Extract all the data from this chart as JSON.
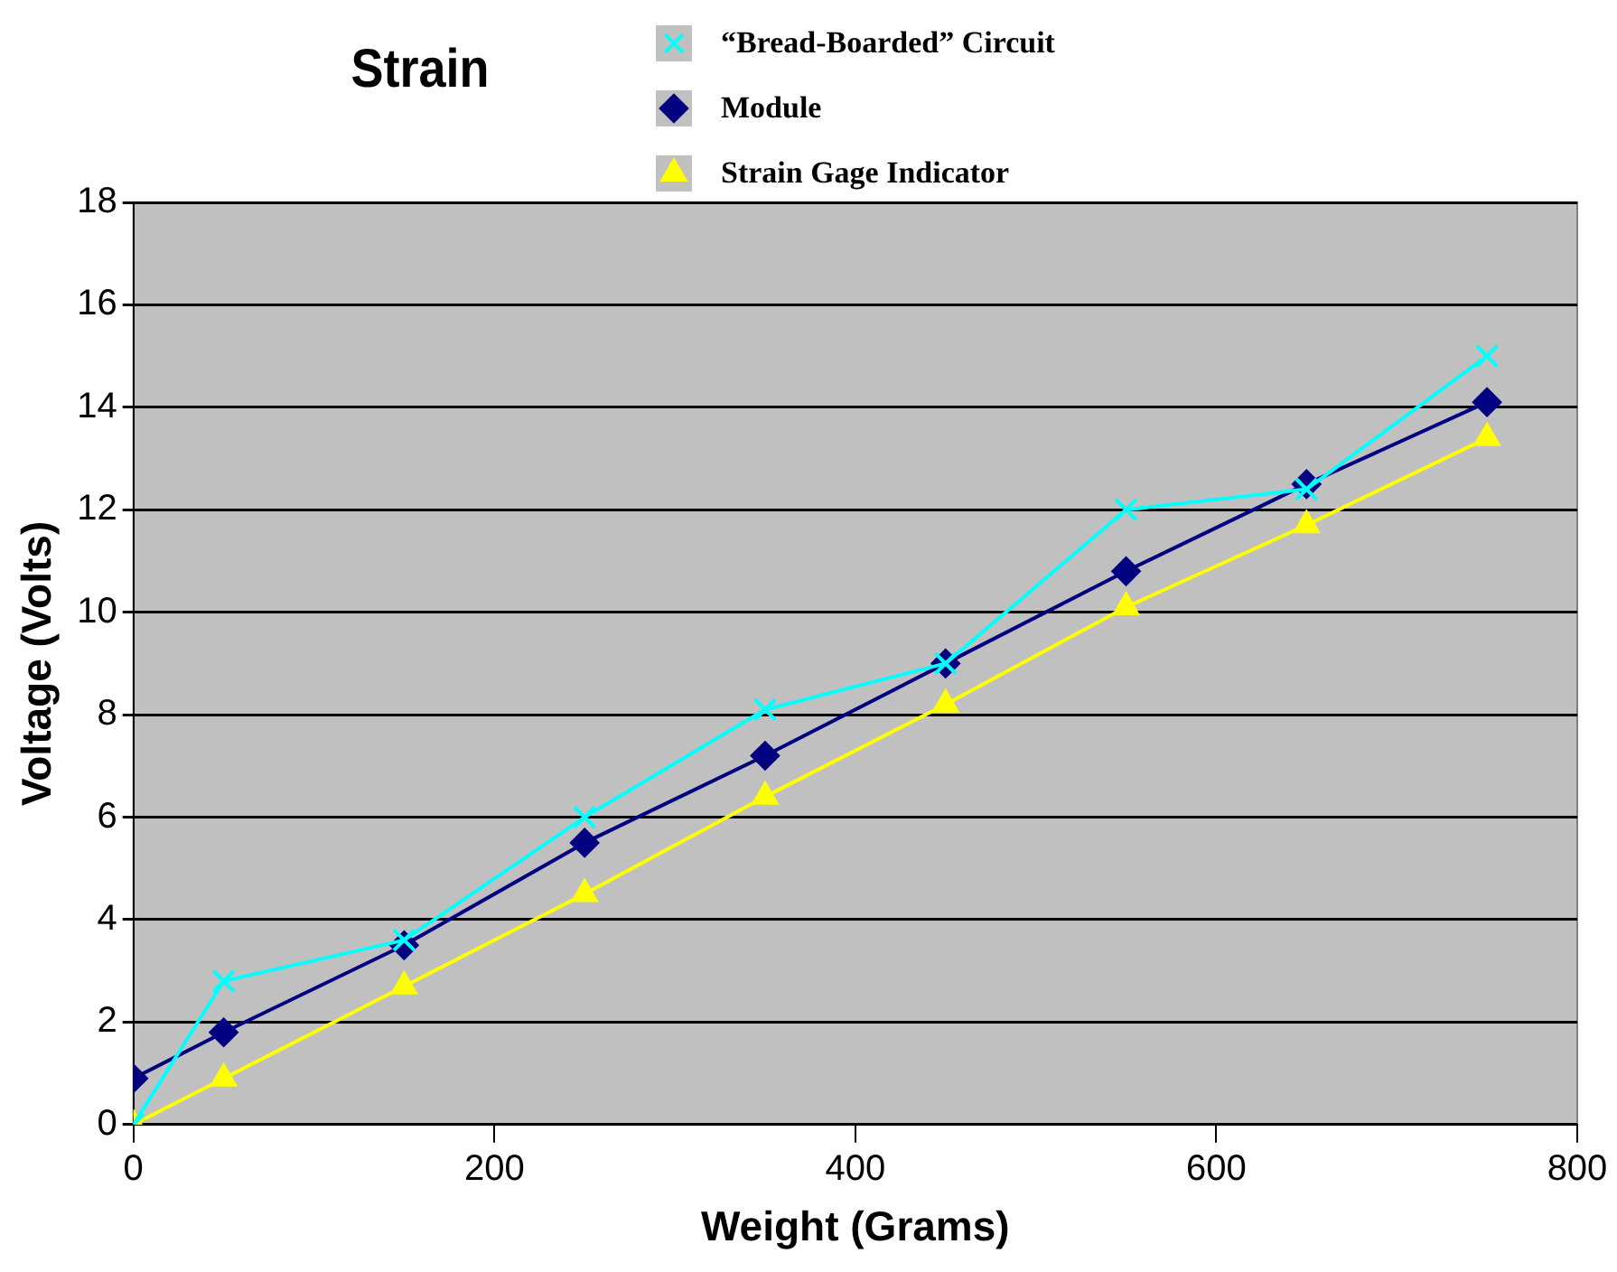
{
  "chart_data": {
    "type": "line",
    "title": "Strain",
    "xlabel": "Weight (Grams)",
    "ylabel": "Voltage (Volts)",
    "x": [
      0,
      50,
      150,
      250,
      350,
      450,
      550,
      650,
      750
    ],
    "series": [
      {
        "name": "“Bread-Boarded” Circuit",
        "color": "#00ffff",
        "marker": "cross",
        "values": [
          0,
          2.8,
          3.6,
          6.0,
          8.1,
          9.0,
          12.0,
          12.4,
          15.0
        ]
      },
      {
        "name": "Module",
        "color": "#000080",
        "marker": "diamond",
        "values": [
          0.9,
          1.8,
          3.5,
          5.5,
          7.2,
          9.0,
          10.8,
          12.5,
          14.1
        ]
      },
      {
        "name": "Strain Gage Indicator",
        "color": "#ffff00",
        "marker": "triangle",
        "values": [
          0,
          0.9,
          2.7,
          4.5,
          6.4,
          8.2,
          10.1,
          11.7,
          13.4
        ]
      }
    ],
    "xlim": [
      0,
      800
    ],
    "xticks": [
      0,
      200,
      400,
      600,
      800
    ],
    "ylim": [
      0,
      18
    ],
    "yticks": [
      0,
      2,
      4,
      6,
      8,
      10,
      12,
      14,
      16,
      18
    ],
    "grid": "y",
    "legend": "top right"
  }
}
